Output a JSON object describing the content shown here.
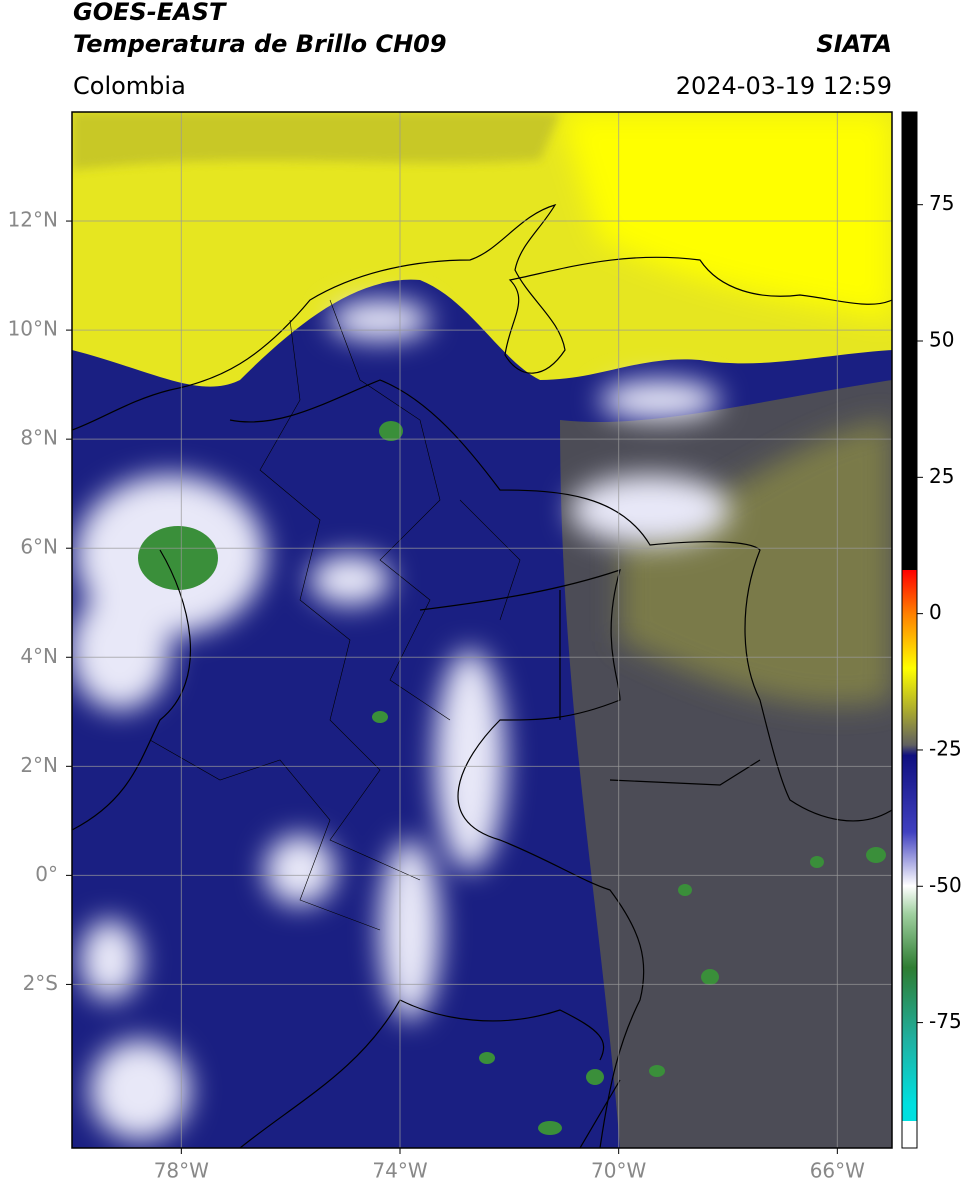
{
  "header": {
    "title": "GOES-EAST",
    "subtitle": "Temperatura de Brillo CH09",
    "source": "SIATA",
    "region": "Colombia",
    "datetime": "2024-03-19 12:59"
  },
  "map": {
    "xlim": [
      -80,
      -65
    ],
    "ylim": [
      -5,
      14
    ],
    "xticks": [
      {
        "value": -78,
        "label": "78°W"
      },
      {
        "value": -74,
        "label": "74°W"
      },
      {
        "value": -70,
        "label": "70°W"
      },
      {
        "value": -66,
        "label": "66°W"
      }
    ],
    "yticks": [
      {
        "value": 12,
        "label": "12°N"
      },
      {
        "value": 10,
        "label": "10°N"
      },
      {
        "value": 8,
        "label": "8°N"
      },
      {
        "value": 6,
        "label": "6°N"
      },
      {
        "value": 4,
        "label": "4°N"
      },
      {
        "value": 2,
        "label": "2°N"
      },
      {
        "value": 0,
        "label": "0°"
      },
      {
        "value": -2,
        "label": "2°S"
      }
    ],
    "grid": true
  },
  "colorbar": {
    "lim": [
      -98,
      92
    ],
    "ticks": [
      75,
      50,
      25,
      0,
      -25,
      -50,
      -75
    ]
  }
}
